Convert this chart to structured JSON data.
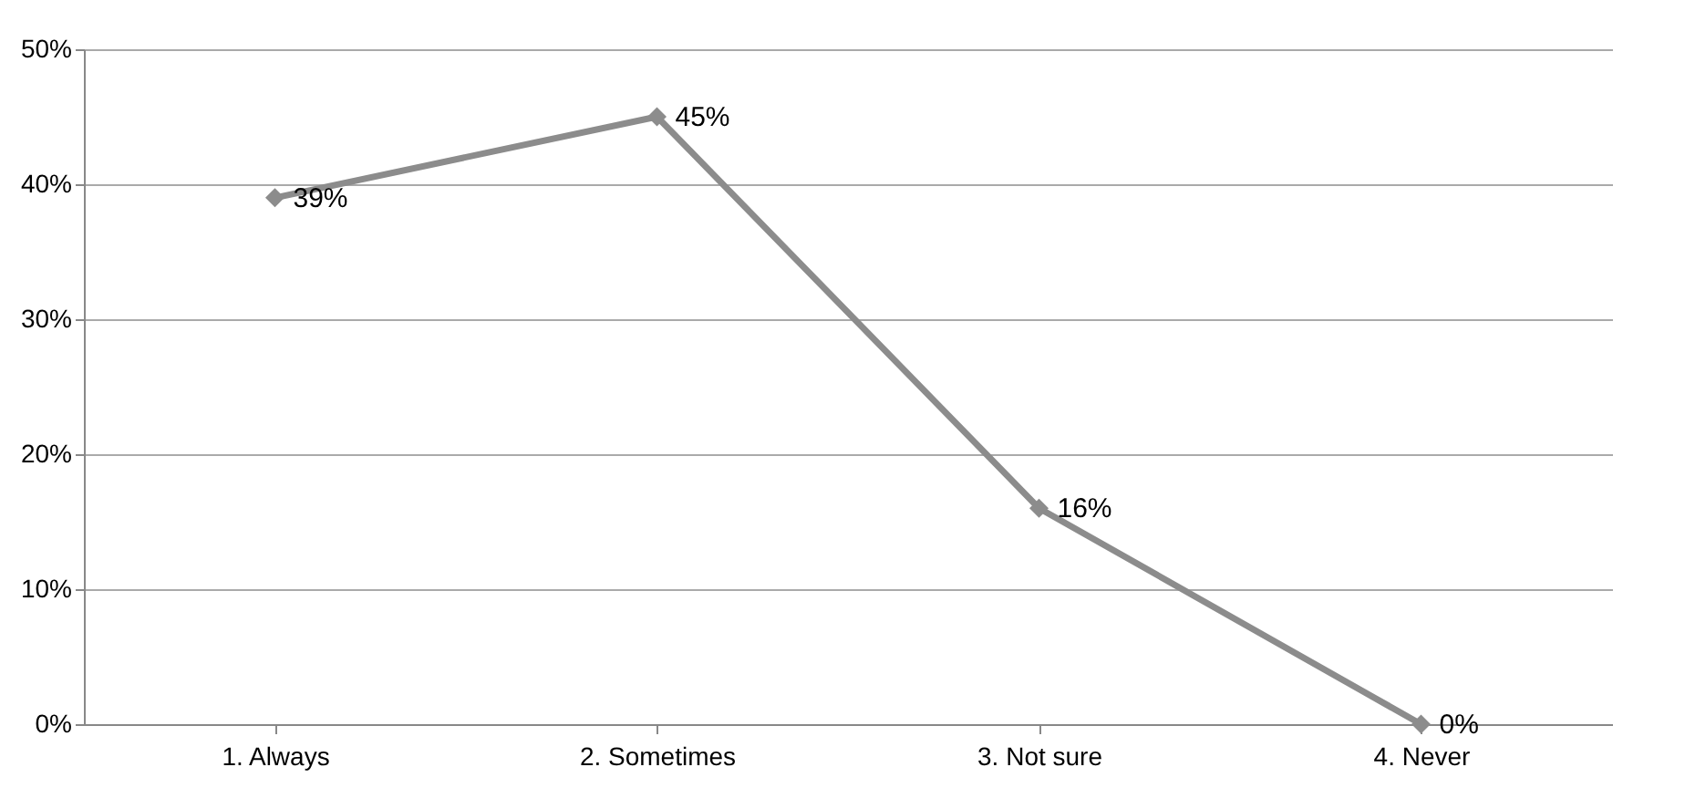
{
  "chart_data": {
    "type": "line",
    "categories": [
      "1. Always",
      "2. Sometimes",
      "3. Not sure",
      "4. Never"
    ],
    "series": [
      {
        "color": "#8c8c8c",
        "values": [
          39,
          45,
          16,
          0
        ],
        "value_labels": [
          "39%",
          "45%",
          "16%",
          "0%"
        ]
      }
    ],
    "ylim": [
      0,
      50
    ],
    "yticks": [
      {
        "value": 0,
        "label": "0%"
      },
      {
        "value": 10,
        "label": "10%"
      },
      {
        "value": 20,
        "label": "20%"
      },
      {
        "value": 30,
        "label": "30%"
      },
      {
        "value": 40,
        "label": "40%"
      },
      {
        "value": 50,
        "label": "50%"
      }
    ],
    "grid": "y",
    "marker": "diamond",
    "line_style": "solid"
  }
}
